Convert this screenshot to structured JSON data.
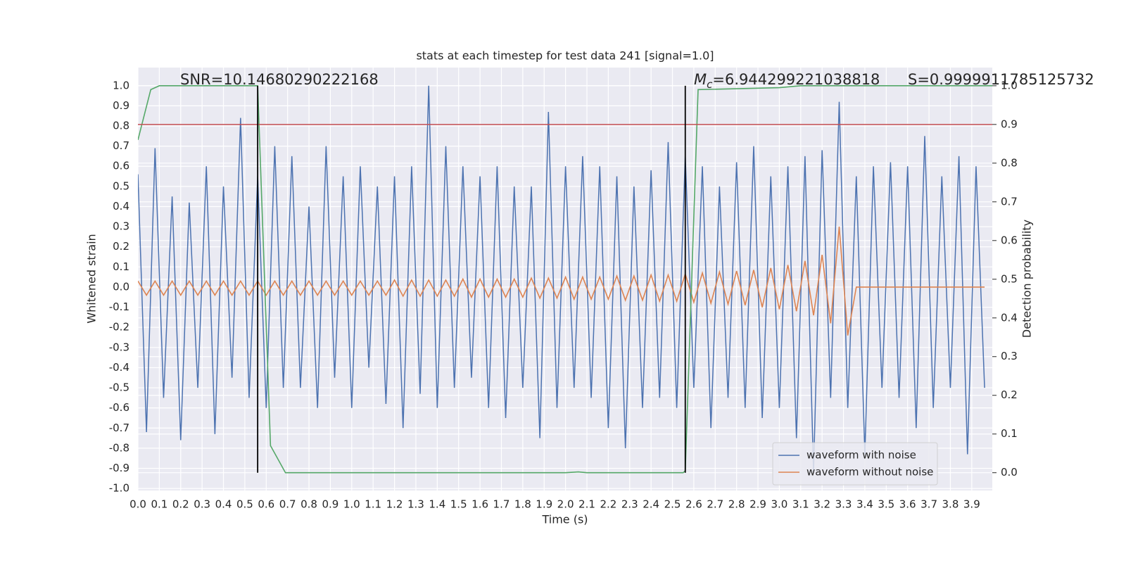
{
  "chart_data": {
    "type": "line",
    "title": "stats at each timestep for test data 241 [signal=1.0]",
    "xlabel": "Time (s)",
    "ylabel": "Whitened strain",
    "y2label": "Detection probability",
    "annotations": [
      {
        "text": "SNR=10.14680290222168"
      },
      {
        "symbol": "M",
        "subscript": "c",
        "text": "=6.944299221038818"
      },
      {
        "text": "S=0.9999911785125732"
      }
    ],
    "x": [
      0,
      0.04,
      0.08,
      0.12,
      0.16,
      0.2,
      0.24,
      0.28,
      0.32,
      0.36,
      0.4,
      0.44,
      0.48,
      0.52,
      0.56,
      0.6,
      0.64,
      0.68,
      0.72,
      0.76,
      0.8,
      0.84,
      0.88,
      0.92,
      0.96,
      1.0,
      1.04,
      1.08,
      1.12,
      1.16,
      1.2,
      1.24,
      1.28,
      1.32,
      1.36,
      1.4,
      1.44,
      1.48,
      1.52,
      1.56,
      1.6,
      1.64,
      1.68,
      1.72,
      1.76,
      1.8,
      1.84,
      1.88,
      1.92,
      1.96,
      2.0,
      2.04,
      2.08,
      2.12,
      2.16,
      2.2,
      2.24,
      2.28,
      2.32,
      2.36,
      2.4,
      2.44,
      2.48,
      2.52,
      2.56,
      2.6,
      2.64,
      2.68,
      2.72,
      2.76,
      2.8,
      2.84,
      2.88,
      2.92,
      2.96,
      3.0,
      3.04,
      3.08,
      3.12,
      3.16,
      3.2,
      3.24,
      3.28,
      3.32,
      3.36,
      3.4,
      3.44,
      3.48,
      3.52,
      3.56,
      3.6,
      3.64,
      3.68,
      3.72,
      3.76,
      3.8,
      3.84,
      3.88,
      3.92,
      3.96
    ],
    "series": [
      {
        "name": "waveform with noise",
        "color": "#4c72b0",
        "values": [
          0.56,
          -0.72,
          0.69,
          -0.55,
          0.45,
          -0.76,
          0.42,
          -0.5,
          0.6,
          -0.73,
          0.5,
          -0.45,
          0.84,
          -0.55,
          0.55,
          -0.6,
          0.7,
          -0.5,
          0.65,
          -0.5,
          0.4,
          -0.6,
          0.7,
          -0.45,
          0.55,
          -0.6,
          0.6,
          -0.4,
          0.5,
          -0.58,
          0.55,
          -0.7,
          0.6,
          -0.53,
          1.0,
          -0.6,
          0.7,
          -0.5,
          0.6,
          -0.45,
          0.55,
          -0.6,
          0.6,
          -0.65,
          0.5,
          -0.5,
          0.5,
          -0.75,
          0.87,
          -0.6,
          0.6,
          -0.5,
          0.65,
          -0.55,
          0.6,
          -0.7,
          0.55,
          -0.8,
          0.5,
          -0.6,
          0.58,
          -0.55,
          0.72,
          -0.6,
          0.65,
          -0.5,
          0.6,
          -0.7,
          0.5,
          -0.55,
          0.62,
          -0.6,
          0.7,
          -0.65,
          0.55,
          -0.6,
          0.6,
          -0.75,
          0.65,
          -0.92,
          0.68,
          -0.55,
          0.92,
          -0.6,
          0.55,
          -0.83,
          0.6,
          -0.5,
          0.62,
          -0.55,
          0.6,
          -0.7,
          0.75,
          -0.6,
          0.55,
          -0.5,
          0.65,
          -0.83,
          0.6,
          -0.5
        ]
      },
      {
        "name": "waveform without noise",
        "color": "#dd8452",
        "values": [
          0.03,
          -0.04,
          0.03,
          -0.04,
          0.03,
          -0.04,
          0.03,
          -0.04,
          0.03,
          -0.04,
          0.03,
          -0.04,
          0.03,
          -0.04,
          0.03,
          -0.04,
          0.03,
          -0.04,
          0.03,
          -0.04,
          0.03,
          -0.04,
          0.03,
          -0.04,
          0.03,
          -0.04,
          0.03,
          -0.04,
          0.03,
          -0.04,
          0.035,
          -0.045,
          0.035,
          -0.045,
          0.035,
          -0.045,
          0.035,
          -0.045,
          0.04,
          -0.05,
          0.04,
          -0.05,
          0.04,
          -0.05,
          0.04,
          -0.05,
          0.045,
          -0.055,
          0.045,
          -0.055,
          0.05,
          -0.06,
          0.05,
          -0.06,
          0.05,
          -0.06,
          0.055,
          -0.065,
          0.055,
          -0.065,
          0.06,
          -0.07,
          0.06,
          -0.07,
          0.065,
          -0.075,
          0.07,
          -0.08,
          0.075,
          -0.085,
          0.08,
          -0.09,
          0.085,
          -0.1,
          0.095,
          -0.11,
          0.11,
          -0.12,
          0.13,
          -0.14,
          0.16,
          -0.18,
          0.3,
          -0.24,
          0,
          0,
          0,
          0,
          0,
          0,
          0,
          0,
          0,
          0,
          0,
          0,
          0,
          0,
          0,
          0
        ]
      },
      {
        "color": "#55a868",
        "axis": "y2",
        "x": [
          0,
          0.06,
          0.1,
          0.5,
          0.56,
          0.62,
          0.69,
          2.0,
          2.06,
          2.1,
          2.55,
          2.56,
          2.62,
          3.0,
          3.1,
          3.3,
          3.9,
          4.0
        ],
        "values": [
          0.86,
          0.99,
          1.0,
          1.0,
          1.0,
          0.07,
          0.0,
          0.0,
          0.002,
          0.0,
          0.0,
          0.005,
          0.99,
          0.995,
          1.0,
          1.0,
          1.0,
          1.0
        ]
      }
    ],
    "threshold": {
      "value": 0.9,
      "axis": "y2",
      "color": "#c44e52"
    },
    "vlines": {
      "x": [
        0.56,
        2.56
      ],
      "color": "#000000"
    },
    "xlim": [
      0,
      3.996
    ],
    "ylim": [
      -1.01,
      1.09
    ],
    "y2lim": [
      -0.046,
      1.047
    ],
    "xticks": [
      {
        "value": 0,
        "label": "0.0"
      },
      0.1,
      0.2,
      0.3,
      0.4,
      0.5,
      0.6,
      0.7,
      0.8,
      0.9,
      {
        "value": 1,
        "label": "1.0"
      },
      1.1,
      1.2,
      1.3,
      1.4,
      1.5,
      1.6,
      1.7,
      1.8,
      1.9,
      {
        "value": 2,
        "label": "2.0"
      },
      2.1,
      2.2,
      2.3,
      2.4,
      2.5,
      2.6,
      2.7,
      2.8,
      2.9,
      {
        "value": 3,
        "label": "3.0"
      },
      3.1,
      3.2,
      3.3,
      3.4,
      3.5,
      3.6,
      3.7,
      3.8,
      3.9
    ],
    "yticks": [
      {
        "value": -1,
        "label": "-1.0"
      },
      -0.9,
      -0.8,
      -0.7,
      -0.6,
      -0.5,
      -0.4,
      -0.3,
      -0.2,
      -0.1,
      {
        "value": 0,
        "label": "0.0"
      },
      0.1,
      0.2,
      0.3,
      0.4,
      0.5,
      0.6,
      0.7,
      0.8,
      0.9,
      {
        "value": 1,
        "label": "1.0"
      }
    ],
    "y2ticks": [
      {
        "value": 0,
        "label": "0.0"
      },
      0.1,
      0.2,
      0.3,
      0.4,
      0.5,
      0.6,
      0.7,
      0.8,
      0.9,
      {
        "value": 1,
        "label": "1.0"
      }
    ],
    "grid": true,
    "legend": "lower right",
    "background": "#eaeaf2"
  }
}
